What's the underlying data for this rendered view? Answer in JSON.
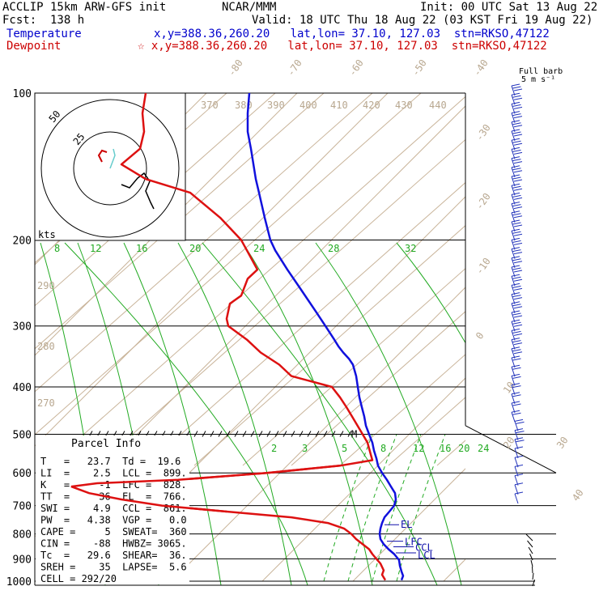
{
  "header": {
    "line1_left": "ACCLIP 15km ARW-GFS init",
    "line1_mid": "NCAR/MMM",
    "line1_right": "Init: 00 UTC Sat 13 Aug 22",
    "line2_left": "Fcst:  138 h",
    "line2_right": "Valid: 18 UTC Thu 18 Aug 22 (03 KST Fri 19 Aug 22)",
    "temp_label": "Temperature",
    "temp_info": "x,y=388.36,260.20   lat,lon= 37.10, 127.03  stn=RKSO,47122",
    "dew_label": "Dewpoint",
    "dew_info": "☆ x,y=388.36,260.20   lat,lon= 37.10, 127.03  stn=RKSO,47122",
    "barb_title1": "Full barb",
    "barb_title2": "5 m s⁻¹"
  },
  "colors": {
    "temperature": "#1111dd",
    "dewpoint": "#dd1111",
    "isotherm": "#c9b49a",
    "mixing_ratio": "#22aa22",
    "grid": "#000000"
  },
  "chart_data": {
    "type": "line",
    "title": "Skew-T log-P sounding",
    "pressure_levels": [
      1000,
      900,
      800,
      700,
      600,
      500,
      400,
      300,
      200,
      100
    ],
    "isotherm_labels": [
      "-80",
      "-70",
      "-60",
      "-50",
      "-40",
      "-30",
      "-20",
      "-10",
      "0",
      "10",
      "20",
      "30",
      "40"
    ],
    "theta_labels": [
      "370",
      "380",
      "390",
      "400",
      "410",
      "420",
      "430",
      "440"
    ],
    "theta_side_labels": [
      "290",
      "280",
      "270"
    ],
    "mixing_ratio_labels_upper": [
      "8",
      "12",
      "16",
      "20",
      "24",
      "28",
      "32"
    ],
    "mixing_ratio_labels_lower": [
      "2",
      "3",
      "5",
      "8",
      "12",
      "16",
      "20",
      "24"
    ],
    "series": [
      {
        "name": "Temperature",
        "points": [
          [
            995,
            496
          ],
          [
            975,
            498
          ],
          [
            955,
            496
          ],
          [
            930,
            494
          ],
          [
            905,
            493
          ],
          [
            880,
            487
          ],
          [
            860,
            480
          ],
          [
            840,
            474
          ],
          [
            820,
            470
          ],
          [
            800,
            469
          ],
          [
            780,
            470
          ],
          [
            760,
            472
          ],
          [
            740,
            475
          ],
          [
            720,
            481
          ],
          [
            700,
            487
          ],
          [
            680,
            489
          ],
          [
            660,
            488
          ],
          [
            640,
            483
          ],
          [
            620,
            478
          ],
          [
            600,
            472
          ],
          [
            580,
            467
          ],
          [
            560,
            465
          ],
          [
            540,
            462
          ],
          [
            520,
            460
          ],
          [
            500,
            456
          ],
          [
            480,
            452
          ],
          [
            460,
            450
          ],
          [
            440,
            447
          ],
          [
            420,
            444
          ],
          [
            400,
            442
          ],
          [
            380,
            440
          ],
          [
            360,
            436
          ],
          [
            350,
            431
          ],
          [
            340,
            424
          ],
          [
            330,
            418
          ],
          [
            320,
            413
          ],
          [
            300,
            402
          ],
          [
            280,
            390
          ],
          [
            250,
            370
          ],
          [
            230,
            355
          ],
          [
            210,
            340
          ],
          [
            200,
            334
          ],
          [
            180,
            327
          ],
          [
            160,
            320
          ],
          [
            150,
            316
          ],
          [
            130,
            310
          ],
          [
            120,
            306
          ],
          [
            110,
            306
          ],
          [
            100,
            308
          ],
          [
            90,
            314
          ],
          [
            80,
            322
          ]
        ]
      },
      {
        "name": "Dewpoint",
        "points": [
          [
            995,
            476
          ],
          [
            970,
            472
          ],
          [
            950,
            474
          ],
          [
            920,
            470
          ],
          [
            900,
            465
          ],
          [
            880,
            460
          ],
          [
            860,
            456
          ],
          [
            840,
            448
          ],
          [
            820,
            440
          ],
          [
            800,
            434
          ],
          [
            780,
            425
          ],
          [
            760,
            405
          ],
          [
            740,
            360
          ],
          [
            720,
            280
          ],
          [
            700,
            200
          ],
          [
            680,
            150
          ],
          [
            660,
            110
          ],
          [
            640,
            88
          ],
          [
            630,
            120
          ],
          [
            620,
            220
          ],
          [
            600,
            330
          ],
          [
            580,
            420
          ],
          [
            565,
            460
          ],
          [
            550,
            458
          ],
          [
            520,
            454
          ],
          [
            500,
            448
          ],
          [
            460,
            435
          ],
          [
            440,
            428
          ],
          [
            420,
            420
          ],
          [
            400,
            410
          ],
          [
            380,
            360
          ],
          [
            360,
            345
          ],
          [
            340,
            322
          ],
          [
            320,
            305
          ],
          [
            300,
            282
          ],
          [
            290,
            280
          ],
          [
            270,
            284
          ],
          [
            260,
            298
          ],
          [
            240,
            306
          ],
          [
            230,
            318
          ],
          [
            210,
            305
          ],
          [
            200,
            298
          ],
          [
            180,
            272
          ],
          [
            160,
            235
          ],
          [
            150,
            180
          ],
          [
            140,
            150
          ],
          [
            130,
            173
          ],
          [
            120,
            178
          ],
          [
            110,
            176
          ],
          [
            100,
            180
          ],
          [
            90,
            185
          ],
          [
            80,
            200
          ],
          [
            70,
            214
          ]
        ]
      }
    ],
    "annotations": [
      "EL",
      "LFC",
      "CCL",
      "LCL",
      "M"
    ],
    "hodograph_labels": [
      "50",
      "25",
      "kts"
    ]
  },
  "parcel": {
    "title": "Parcel Info",
    "rows": [
      "T   =   23.7  Td =  19.6",
      "LI  =    2.5  LCL =  899.",
      "K   =     -1  LFC =  828.",
      "TT  =     36  EL  =  766.",
      "SWI =    4.9  CCL =  861.",
      "PW  =   4.38  VGP =   0.0",
      "CAPE =     5  SWEAT=  360",
      "CIN =    -88  HWBZ= 3065.",
      "Tc  =   29.6  SHEAR=  36.",
      "SREH =    35  LAPSE=  5.6",
      "CELL = 292/20"
    ]
  }
}
